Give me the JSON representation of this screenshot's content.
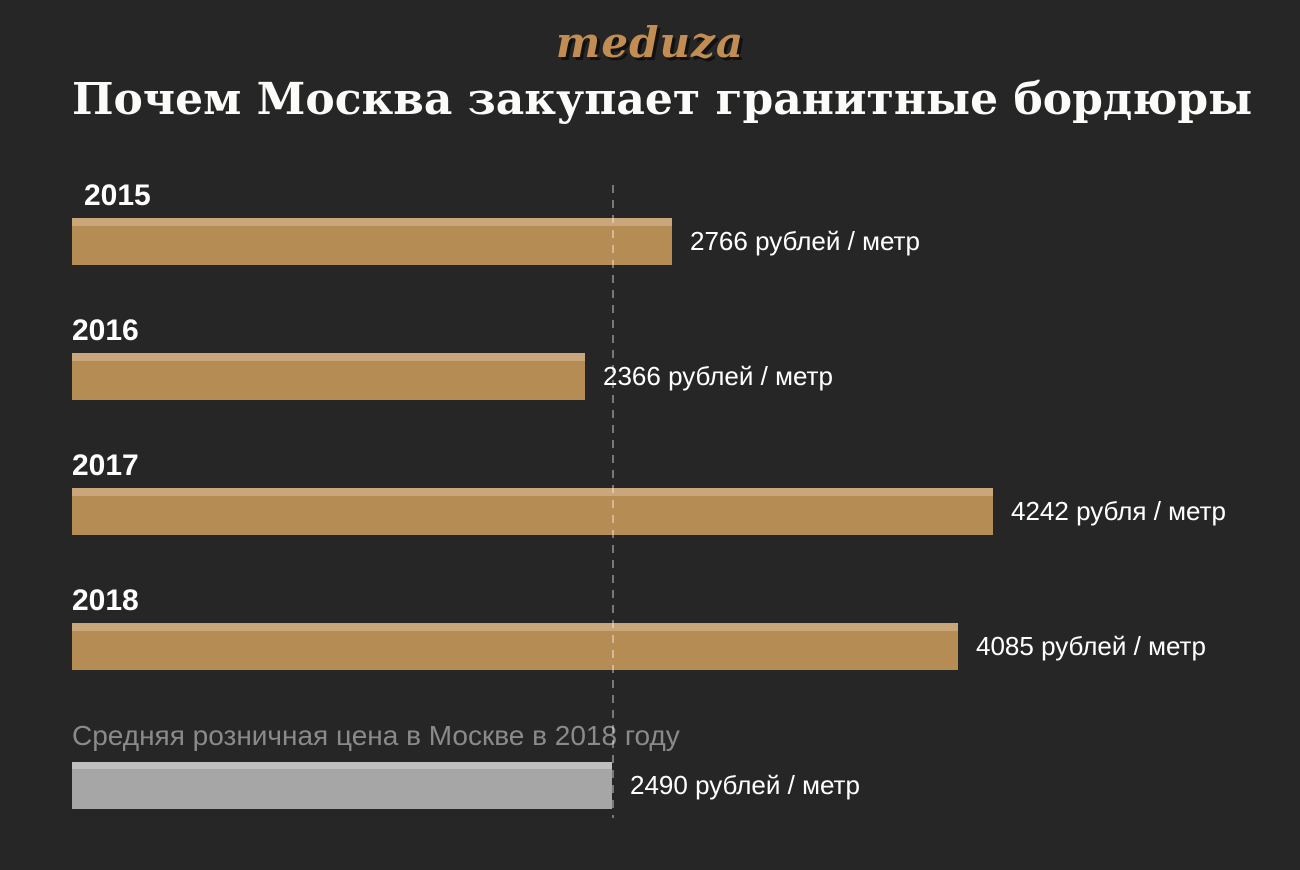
{
  "header": {
    "logo": "meduza",
    "title": "Почем Москва закупает гранитные бордюры"
  },
  "colors": {
    "background": "#262626",
    "bar": "#b68c55",
    "bar-light": "#c9a77b",
    "ref-bar": "#a6a6a6",
    "ref-bar-light": "#c0c0c0",
    "muted-text": "#8a8a8a",
    "logo-gold": "#c28d52",
    "dashed-line": "rgba(255,255,255,0.38)"
  },
  "chart_data": {
    "type": "bar",
    "orientation": "horizontal",
    "title": "Почем Москва закупает гранитные бордюры",
    "unit": "рублей за метр",
    "categories": [
      "2015",
      "2016",
      "2017",
      "2018",
      "Средняя розничная цена в Москве в 2018 году"
    ],
    "values": [
      2766,
      2366,
      4242,
      4085,
      2490
    ],
    "xlim": [
      0,
      4242
    ],
    "grid": false,
    "legend": false,
    "bars": [
      {
        "label": "2015",
        "value": 2766,
        "value_label": "2766 рублей / метр",
        "kind": "procurement"
      },
      {
        "label": "2016",
        "value": 2366,
        "value_label": "2366 рублей / метр",
        "kind": "procurement"
      },
      {
        "label": "2017",
        "value": 4242,
        "value_label": "4242 рубля / метр",
        "kind": "procurement"
      },
      {
        "label": "2018",
        "value": 4085,
        "value_label": "4085 рублей / метр",
        "kind": "procurement"
      },
      {
        "label": "Средняя розничная цена в Москве в 2018 году",
        "value": 2490,
        "value_label": "2490 рублей / метр",
        "kind": "reference"
      }
    ],
    "reference_line": {
      "value": 2490,
      "label": "Средняя розничная цена в Москве в 2018 году",
      "style": "dashed-vertical"
    }
  }
}
